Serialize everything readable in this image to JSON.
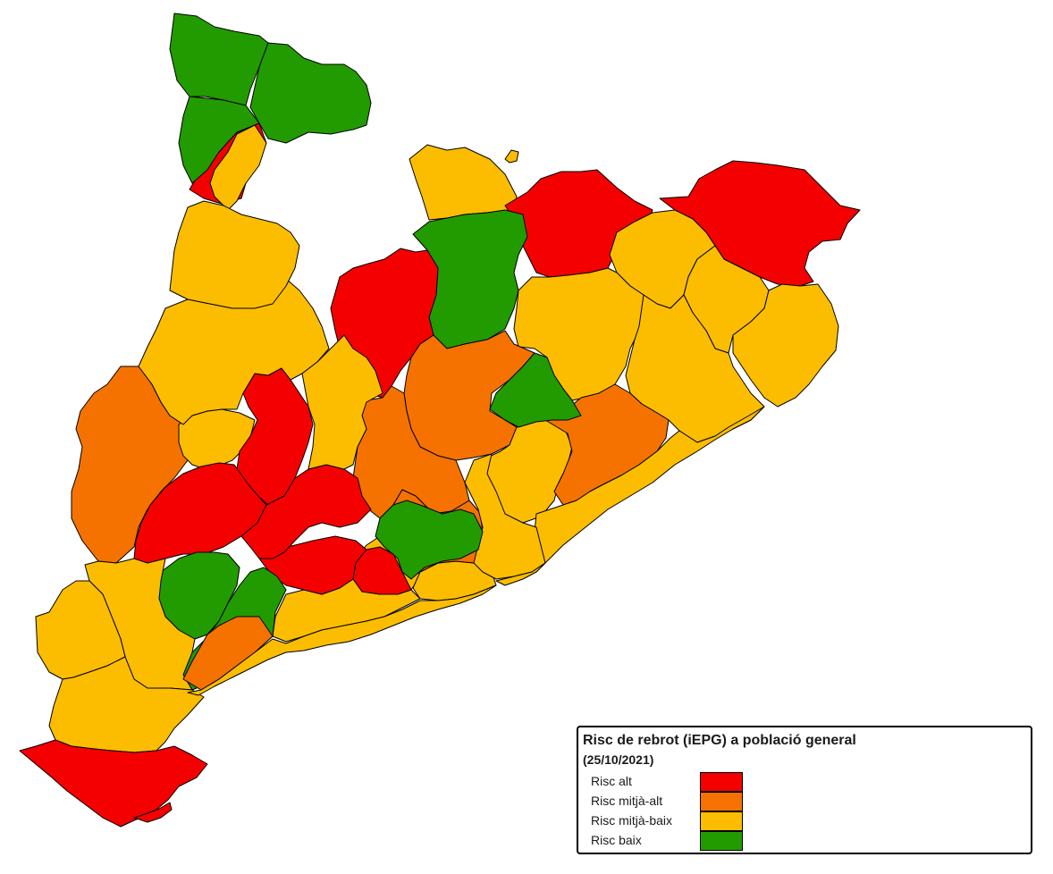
{
  "colors": {
    "alt": "#f40000",
    "mitja_alt": "#f57200",
    "mitja_baix": "#fcbd00",
    "baix": "#229b00"
  },
  "legend": {
    "title": "Risc de rebrot (iEPG) a població general",
    "date": "(25/10/2021)",
    "items": [
      {
        "label": "Risc alt",
        "level": "alt"
      },
      {
        "label": "Risc mitjà-alt",
        "level": "mitja_alt"
      },
      {
        "label": "Risc mitjà-baix",
        "level": "mitja_baix"
      },
      {
        "label": "Risc baix",
        "level": "baix"
      }
    ]
  },
  "regions": [
    {
      "level": "baix"
    },
    {
      "level": "baix"
    },
    {
      "level": "alt"
    },
    {
      "level": "baix"
    },
    {
      "level": "mitja_baix"
    },
    {
      "level": "alt"
    },
    {
      "level": "alt"
    },
    {
      "level": "mitja_baix"
    },
    {
      "level": "baix"
    },
    {
      "level": "mitja_baix"
    },
    {
      "level": "mitja_baix"
    },
    {
      "level": "alt"
    },
    {
      "level": "mitja_baix"
    },
    {
      "level": "mitja_baix"
    },
    {
      "level": "mitja_alt"
    },
    {
      "level": "mitja_alt"
    },
    {
      "level": "mitja_alt"
    },
    {
      "level": "mitja_baix"
    },
    {
      "level": "alt"
    },
    {
      "level": "mitja_baix"
    },
    {
      "level": "alt"
    },
    {
      "level": "mitja_alt"
    },
    {
      "level": "baix"
    },
    {
      "level": "mitja_baix"
    },
    {
      "level": "mitja_baix"
    },
    {
      "level": "mitja_baix"
    },
    {
      "level": "mitja_baix"
    },
    {
      "level": "alt"
    },
    {
      "level": "alt"
    },
    {
      "level": "mitja_baix"
    },
    {
      "level": "mitja_alt"
    },
    {
      "level": "baix"
    },
    {
      "level": "mitja_baix"
    },
    {
      "level": "baix"
    },
    {
      "level": "mitja_baix"
    },
    {
      "level": "mitja_alt"
    },
    {
      "level": "baix"
    },
    {
      "level": "mitja_baix"
    },
    {
      "level": "mitja_baix"
    },
    {
      "level": "alt"
    },
    {
      "level": "alt"
    },
    {
      "level": "alt"
    },
    {
      "level": "mitja_baix"
    },
    {
      "level": "mitja_baix"
    }
  ]
}
